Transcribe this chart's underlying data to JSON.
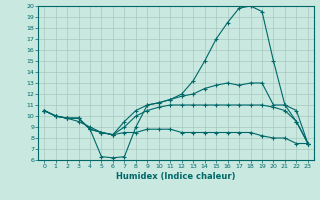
{
  "xlabel": "Humidex (Indice chaleur)",
  "background_color": "#c8e8e0",
  "grid_color": "#a8c8c0",
  "line_color": "#006868",
  "xlim": [
    -0.5,
    23.5
  ],
  "ylim": [
    6,
    20
  ],
  "xticks": [
    0,
    1,
    2,
    3,
    4,
    5,
    6,
    7,
    8,
    9,
    10,
    11,
    12,
    13,
    14,
    15,
    16,
    17,
    18,
    19,
    20,
    21,
    22,
    23
  ],
  "yticks": [
    6,
    7,
    8,
    9,
    10,
    11,
    12,
    13,
    14,
    15,
    16,
    17,
    18,
    19,
    20
  ],
  "line1_x": [
    0,
    1,
    2,
    3,
    4,
    5,
    6,
    7,
    8,
    9,
    10,
    11,
    12,
    13,
    14,
    15,
    16,
    17,
    18,
    19,
    20,
    21,
    22,
    23
  ],
  "line1_y": [
    10.5,
    10.0,
    9.8,
    9.8,
    8.8,
    6.3,
    6.2,
    6.3,
    9.0,
    11.0,
    11.2,
    11.5,
    12.0,
    13.2,
    15.0,
    17.0,
    18.5,
    19.8,
    20.0,
    19.5,
    15.0,
    11.0,
    9.5,
    7.5
  ],
  "line2_x": [
    0,
    1,
    2,
    3,
    4,
    5,
    6,
    7,
    8,
    9,
    10,
    11,
    12,
    13,
    14,
    15,
    16,
    17,
    18,
    19,
    20,
    21,
    22,
    23
  ],
  "line2_y": [
    10.5,
    10.0,
    9.8,
    9.8,
    8.8,
    8.5,
    8.3,
    9.5,
    10.5,
    11.0,
    11.2,
    11.5,
    11.8,
    12.0,
    12.5,
    12.8,
    13.0,
    12.8,
    13.0,
    13.0,
    11.0,
    11.0,
    10.5,
    7.5
  ],
  "line3_x": [
    0,
    1,
    2,
    3,
    4,
    5,
    6,
    7,
    8,
    9,
    10,
    11,
    12,
    13,
    14,
    15,
    16,
    17,
    18,
    19,
    20,
    21,
    22,
    23
  ],
  "line3_y": [
    10.5,
    10.0,
    9.8,
    9.8,
    8.8,
    8.5,
    8.3,
    9.0,
    10.0,
    10.5,
    10.8,
    11.0,
    11.0,
    11.0,
    11.0,
    11.0,
    11.0,
    11.0,
    11.0,
    11.0,
    10.8,
    10.5,
    9.5,
    7.5
  ],
  "line4_x": [
    0,
    1,
    2,
    3,
    4,
    5,
    6,
    7,
    8,
    9,
    10,
    11,
    12,
    13,
    14,
    15,
    16,
    17,
    18,
    19,
    20,
    21,
    22,
    23
  ],
  "line4_y": [
    10.5,
    10.0,
    9.8,
    9.5,
    9.0,
    8.5,
    8.3,
    8.5,
    8.5,
    8.8,
    8.8,
    8.8,
    8.5,
    8.5,
    8.5,
    8.5,
    8.5,
    8.5,
    8.5,
    8.2,
    8.0,
    8.0,
    7.5,
    7.5
  ]
}
